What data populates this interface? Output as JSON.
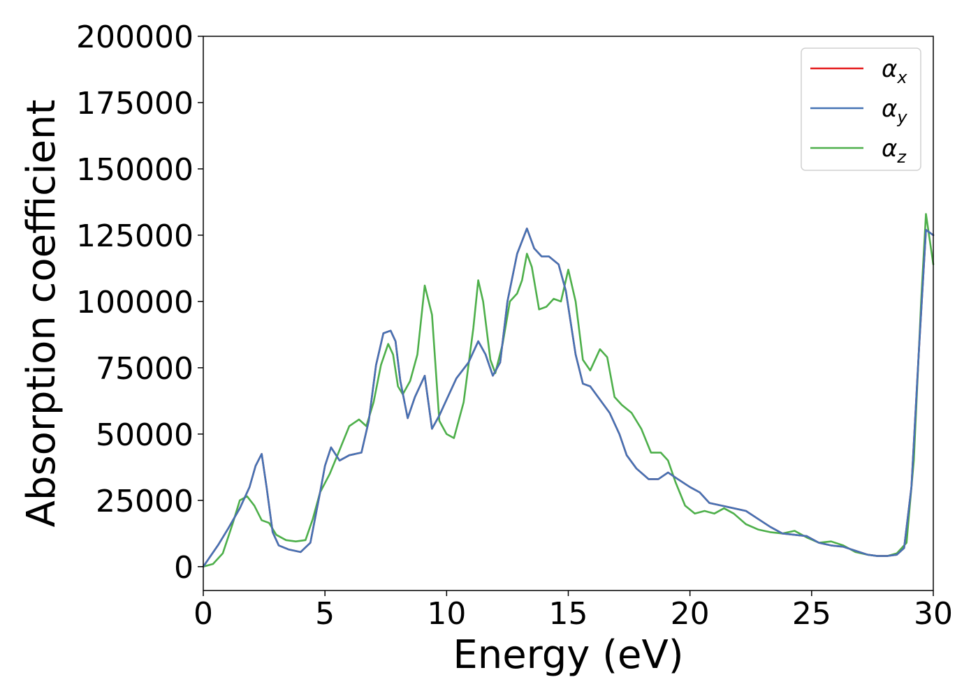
{
  "chart_data": {
    "type": "line",
    "title": "",
    "xlabel": "Energy (eV)",
    "ylabel": "Absorption coefficient",
    "xlim": [
      0,
      30
    ],
    "ylim": [
      -9000,
      200000
    ],
    "xticks": [
      0,
      5,
      10,
      15,
      20,
      25,
      30
    ],
    "yticks": [
      0,
      25000,
      50000,
      75000,
      100000,
      125000,
      150000,
      175000,
      200000
    ],
    "grid": false,
    "legend_position": "top-right",
    "series": [
      {
        "name": "αx",
        "legend_symbol": "α",
        "legend_subscript": "x",
        "color": "#e41a1c",
        "x": [
          0,
          0.3,
          0.6,
          1,
          1.5,
          1.9,
          2.15,
          2.4,
          2.6,
          2.85,
          3.1,
          3.5,
          4,
          4.4,
          4.8,
          5,
          5.25,
          5.6,
          6,
          6.5,
          6.8,
          7.1,
          7.4,
          7.7,
          7.9,
          8.1,
          8.4,
          8.7,
          9.1,
          9.4,
          9.7,
          10,
          10.4,
          10.9,
          11.3,
          11.6,
          11.9,
          12.2,
          12.5,
          12.9,
          13.3,
          13.6,
          13.9,
          14.2,
          14.6,
          14.9,
          15.3,
          15.6,
          15.9,
          16.3,
          16.7,
          17.1,
          17.4,
          17.8,
          18.3,
          18.7,
          19.1,
          19.5,
          20,
          20.4,
          20.8,
          21.3,
          21.8,
          22.3,
          22.8,
          23.3,
          23.8,
          24.3,
          24.8,
          25.3,
          25.8,
          26.3,
          26.8,
          27.3,
          27.7,
          28.1,
          28.5,
          28.8,
          29.1,
          29.4,
          29.7,
          30
        ],
        "values": [
          0,
          4000,
          8000,
          14000,
          22000,
          30000,
          38000,
          42500,
          30000,
          13000,
          8000,
          6500,
          5500,
          9000,
          28000,
          38000,
          45000,
          40000,
          42000,
          43000,
          55000,
          76000,
          88000,
          89000,
          85000,
          70000,
          56000,
          64000,
          72000,
          52000,
          57000,
          63000,
          71000,
          77000,
          85000,
          80000,
          72000,
          77000,
          100000,
          118000,
          127500,
          120000,
          117000,
          117000,
          114000,
          104000,
          80000,
          69000,
          68000,
          63000,
          58000,
          50000,
          42000,
          37000,
          33000,
          33000,
          35500,
          33000,
          30000,
          28000,
          24000,
          23000,
          22000,
          21000,
          18000,
          15000,
          12500,
          12000,
          11500,
          9000,
          8000,
          7500,
          6000,
          4500,
          4000,
          4000,
          4500,
          7000,
          30000,
          80000,
          127000,
          125000
        ],
        "values_note": "nearly identical to αy"
      },
      {
        "name": "αy",
        "legend_symbol": "α",
        "legend_subscript": "y",
        "color": "#4472b4",
        "x": [
          0,
          0.3,
          0.6,
          1,
          1.5,
          1.9,
          2.15,
          2.4,
          2.6,
          2.85,
          3.1,
          3.5,
          4,
          4.4,
          4.8,
          5,
          5.25,
          5.6,
          6,
          6.5,
          6.8,
          7.1,
          7.4,
          7.7,
          7.9,
          8.1,
          8.4,
          8.7,
          9.1,
          9.4,
          9.7,
          10,
          10.4,
          10.9,
          11.3,
          11.6,
          11.9,
          12.2,
          12.5,
          12.9,
          13.3,
          13.6,
          13.9,
          14.2,
          14.6,
          14.9,
          15.3,
          15.6,
          15.9,
          16.3,
          16.7,
          17.1,
          17.4,
          17.8,
          18.3,
          18.7,
          19.1,
          19.5,
          20,
          20.4,
          20.8,
          21.3,
          21.8,
          22.3,
          22.8,
          23.3,
          23.8,
          24.3,
          24.8,
          25.3,
          25.8,
          26.3,
          26.8,
          27.3,
          27.7,
          28.1,
          28.5,
          28.8,
          29.1,
          29.4,
          29.7,
          30
        ],
        "values": [
          0,
          4000,
          8000,
          14000,
          22000,
          30000,
          38000,
          42500,
          30000,
          13000,
          8000,
          6500,
          5500,
          9000,
          28000,
          38000,
          45000,
          40000,
          42000,
          43000,
          55000,
          76000,
          88000,
          89000,
          85000,
          70000,
          56000,
          64000,
          72000,
          52000,
          57000,
          63000,
          71000,
          77000,
          85000,
          80000,
          72000,
          77000,
          100000,
          118000,
          127500,
          120000,
          117000,
          117000,
          114000,
          104000,
          80000,
          69000,
          68000,
          63000,
          58000,
          50000,
          42000,
          37000,
          33000,
          33000,
          35500,
          33000,
          30000,
          28000,
          24000,
          23000,
          22000,
          21000,
          18000,
          15000,
          12500,
          12000,
          11500,
          9000,
          8000,
          7500,
          6000,
          4500,
          4000,
          4000,
          4500,
          7000,
          30000,
          80000,
          127000,
          125000
        ]
      },
      {
        "name": "αz",
        "legend_symbol": "α",
        "legend_subscript": "z",
        "color": "#4daf4a",
        "x": [
          0,
          0.4,
          0.8,
          1.2,
          1.5,
          1.8,
          2.1,
          2.4,
          2.7,
          3,
          3.4,
          3.8,
          4.2,
          4.5,
          4.8,
          5.2,
          5.6,
          6,
          6.4,
          6.7,
          7,
          7.3,
          7.6,
          7.8,
          8,
          8.2,
          8.5,
          8.8,
          9.1,
          9.4,
          9.7,
          10,
          10.3,
          10.7,
          11.1,
          11.3,
          11.5,
          11.8,
          12,
          12.3,
          12.6,
          12.9,
          13.1,
          13.3,
          13.5,
          13.8,
          14.1,
          14.4,
          14.7,
          15,
          15.3,
          15.6,
          15.9,
          16.3,
          16.6,
          16.9,
          17.2,
          17.6,
          18,
          18.4,
          18.8,
          19.1,
          19.4,
          19.8,
          20.2,
          20.6,
          21,
          21.4,
          21.8,
          22.3,
          22.8,
          23.3,
          23.8,
          24.3,
          24.8,
          25.3,
          25.8,
          26.3,
          26.8,
          27.3,
          27.7,
          28.1,
          28.5,
          28.9,
          29.2,
          29.5,
          29.7,
          30
        ],
        "values": [
          0,
          1000,
          5000,
          16000,
          25000,
          26500,
          23000,
          17500,
          16500,
          12000,
          10000,
          9500,
          10000,
          18000,
          28000,
          35000,
          44000,
          53000,
          55500,
          53000,
          62000,
          76000,
          84000,
          80000,
          68000,
          65000,
          70000,
          80000,
          106000,
          95000,
          55000,
          50000,
          48500,
          62000,
          90000,
          108000,
          100000,
          78000,
          73000,
          84000,
          100000,
          103000,
          108000,
          118000,
          113000,
          97000,
          98000,
          101000,
          100000,
          112000,
          100000,
          78000,
          74000,
          82000,
          79000,
          64000,
          61000,
          58000,
          52000,
          43000,
          43000,
          40000,
          32000,
          23000,
          20000,
          21000,
          20000,
          22000,
          20000,
          16000,
          14000,
          13000,
          12500,
          13500,
          11000,
          9000,
          9500,
          8000,
          5500,
          4500,
          4000,
          4000,
          5000,
          9000,
          40000,
          100000,
          133000,
          114000
        ]
      }
    ]
  }
}
